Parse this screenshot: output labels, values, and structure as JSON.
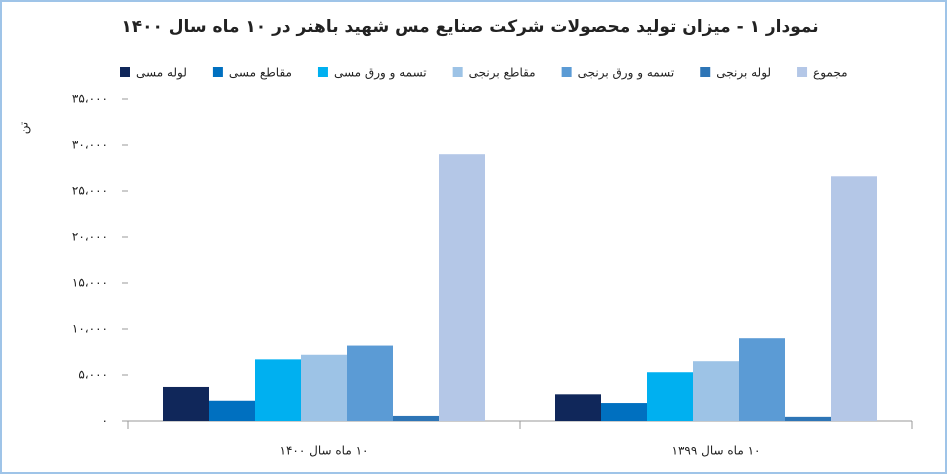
{
  "chart_data": {
    "type": "bar",
    "title": "نمودار ۱ - میزان تولید محصولات شرکت صنایع مس شهید باهنر در ۱۰ ماه سال ۱۴۰۰",
    "y_label": "تن",
    "categories": [
      "۱۰ ماه سال ۱۴۰۰",
      "۱۰ ماه سال ۱۳۹۹"
    ],
    "series": [
      {
        "name": "لوله مسی",
        "color": "#10275a",
        "values": [
          3700,
          2900
        ]
      },
      {
        "name": "مقاطع مسی",
        "color": "#0070c0",
        "values": [
          2200,
          1950
        ]
      },
      {
        "name": "تسمه و ورق مسی",
        "color": "#00b0f0",
        "values": [
          6700,
          5300
        ]
      },
      {
        "name": "مقاطع برنجی",
        "color": "#9dc3e6",
        "values": [
          7200,
          6500
        ]
      },
      {
        "name": "تسمه و ورق برنجی",
        "color": "#5b9bd5",
        "values": [
          8200,
          9000
        ]
      },
      {
        "name": "لوله برنجی",
        "color": "#2e75b6",
        "values": [
          550,
          450
        ]
      },
      {
        "name": "مجموع",
        "color": "#b4c7e7",
        "values": [
          29000,
          26600
        ]
      }
    ],
    "ylim": [
      0,
      35000
    ],
    "yticks": [
      {
        "value": 0,
        "label": "۰"
      },
      {
        "value": 5000,
        "label": "۵،۰۰۰"
      },
      {
        "value": 10000,
        "label": "۱۰،۰۰۰"
      },
      {
        "value": 15000,
        "label": "۱۵،۰۰۰"
      },
      {
        "value": 20000,
        "label": "۲۰،۰۰۰"
      },
      {
        "value": 25000,
        "label": "۲۵،۰۰۰"
      },
      {
        "value": 30000,
        "label": "۳۰،۰۰۰"
      },
      {
        "value": 35000,
        "label": "۳۵،۰۰۰"
      }
    ],
    "legend": "top"
  }
}
